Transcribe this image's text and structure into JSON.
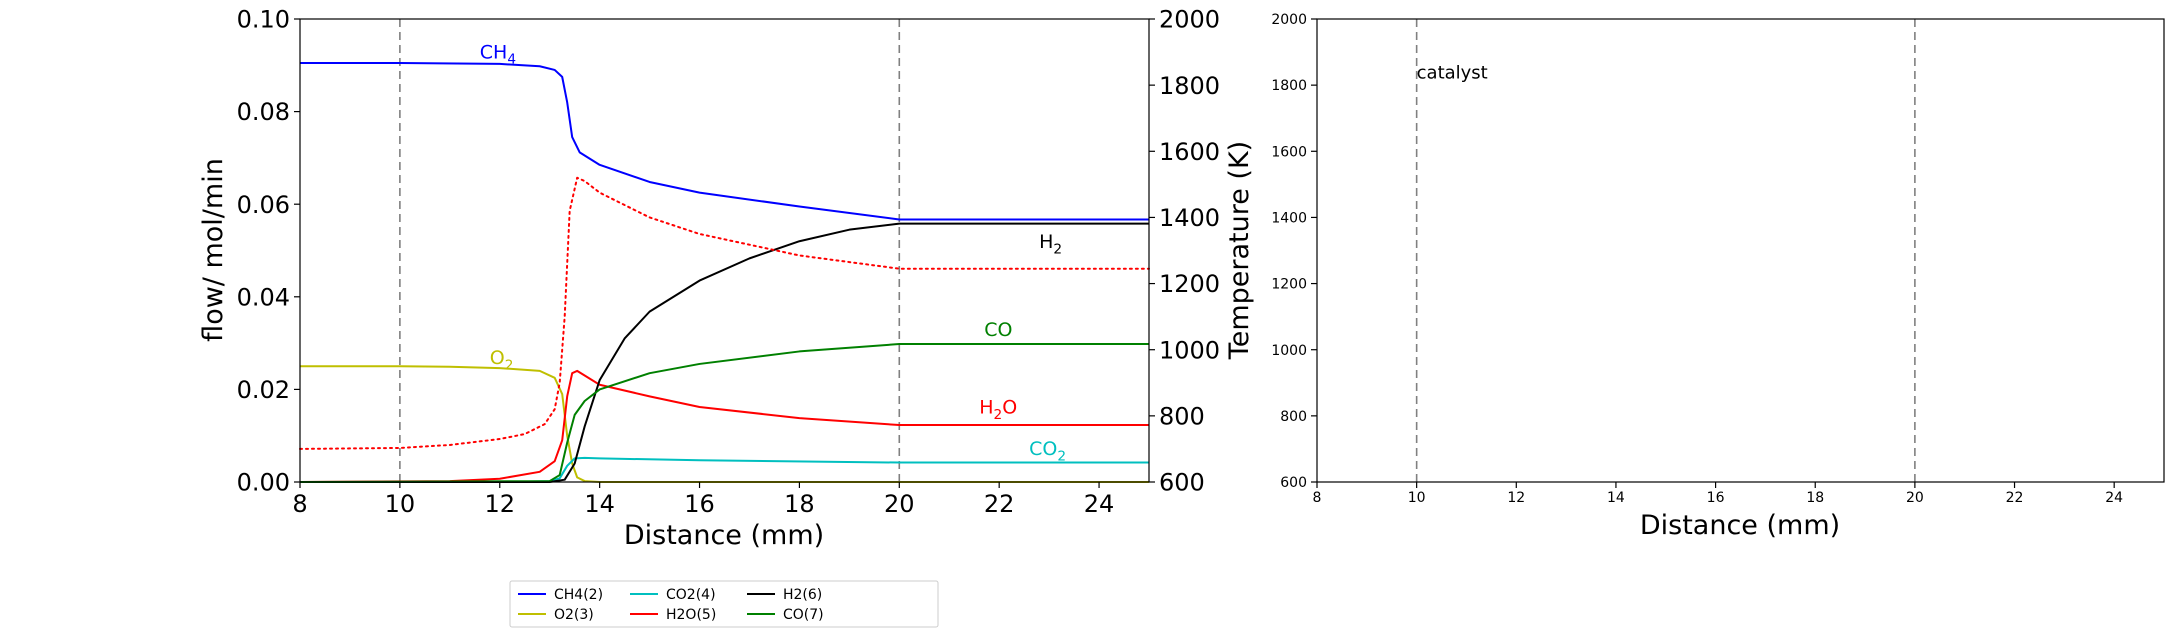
{
  "chart_data": [
    {
      "type": "line",
      "title": "",
      "xlabel": "Distance (mm)",
      "ylabel": "flow/ mol/min",
      "y2label": "Temperature (K)",
      "xlim": [
        8,
        25
      ],
      "ylim": [
        0,
        0.1
      ],
      "y2lim": [
        600,
        2000
      ],
      "xticks": [
        "8",
        "10",
        "12",
        "14",
        "16",
        "18",
        "20",
        "22",
        "24"
      ],
      "yticks": [
        "0.00",
        "0.02",
        "0.04",
        "0.06",
        "0.08",
        "0.10"
      ],
      "y2ticks": [
        "600",
        "800",
        "1000",
        "1200",
        "1400",
        "1600",
        "1800",
        "2000"
      ],
      "vlines": [
        10,
        20
      ],
      "grid": false,
      "legend_position": "bottom-center",
      "series": [
        {
          "name": "CH4(2)",
          "color": "#0000ff",
          "style": "solid",
          "x": [
            8,
            10,
            12,
            12.8,
            13.1,
            13.25,
            13.35,
            13.45,
            13.6,
            14,
            15,
            16,
            18,
            20,
            25
          ],
          "y": [
            0.0905,
            0.0905,
            0.0903,
            0.0898,
            0.089,
            0.0875,
            0.082,
            0.0745,
            0.0712,
            0.0685,
            0.0648,
            0.0625,
            0.0595,
            0.0567,
            0.0567
          ]
        },
        {
          "name": "O2(3)",
          "color": "#bfbf00",
          "style": "solid",
          "x": [
            8,
            10,
            11,
            12,
            12.8,
            13.1,
            13.25,
            13.35,
            13.45,
            13.55,
            13.7,
            14,
            25
          ],
          "y": [
            0.025,
            0.025,
            0.0249,
            0.0246,
            0.024,
            0.0225,
            0.019,
            0.01,
            0.004,
            0.001,
            0.0002,
            0,
            0
          ]
        },
        {
          "name": "CO2(4)",
          "color": "#00bfbf",
          "style": "solid",
          "x": [
            8,
            12,
            13,
            13.2,
            13.35,
            13.5,
            13.7,
            14,
            16,
            20,
            25
          ],
          "y": [
            0,
            0,
            0.0002,
            0.0008,
            0.0035,
            0.0051,
            0.0052,
            0.0051,
            0.0047,
            0.0042,
            0.0042
          ]
        },
        {
          "name": "H2O(5)",
          "color": "#ff0000",
          "style": "solid",
          "x": [
            8,
            11,
            12,
            12.8,
            13.1,
            13.25,
            13.35,
            13.45,
            13.55,
            13.7,
            14,
            15,
            16,
            18,
            20,
            25
          ],
          "y": [
            0,
            0.0002,
            0.0007,
            0.0022,
            0.0045,
            0.009,
            0.0185,
            0.0235,
            0.024,
            0.023,
            0.021,
            0.0185,
            0.0162,
            0.0138,
            0.0123,
            0.0123
          ]
        },
        {
          "name": "H2(6)",
          "color": "#000000",
          "style": "solid",
          "x": [
            8,
            13,
            13.3,
            13.5,
            13.7,
            14,
            14.5,
            15,
            16,
            17,
            18,
            19,
            20,
            25
          ],
          "y": [
            0,
            0,
            0.0005,
            0.004,
            0.012,
            0.022,
            0.031,
            0.0368,
            0.0435,
            0.0483,
            0.052,
            0.0545,
            0.0558,
            0.0558
          ]
        },
        {
          "name": "CO(7)",
          "color": "#008000",
          "style": "solid",
          "x": [
            8,
            13,
            13.2,
            13.35,
            13.5,
            13.7,
            14,
            15,
            16,
            18,
            20,
            25
          ],
          "y": [
            0,
            0.0002,
            0.0015,
            0.0085,
            0.0145,
            0.0175,
            0.02,
            0.0235,
            0.0255,
            0.0282,
            0.0298,
            0.0298
          ]
        },
        {
          "name": "",
          "color": "#ff0000",
          "style": "dotted",
          "axis": "y2",
          "x": [
            8,
            10,
            11,
            12,
            12.5,
            12.9,
            13.1,
            13.2,
            13.3,
            13.4,
            13.55,
            13.7,
            14,
            15,
            16,
            18,
            20,
            25
          ],
          "y": [
            700,
            703,
            712,
            730,
            745,
            775,
            820,
            900,
            1100,
            1420,
            1520,
            1510,
            1475,
            1400,
            1350,
            1285,
            1245,
            1245
          ]
        }
      ],
      "annotations": [
        {
          "text": "CH",
          "sub": "4",
          "x": 11.6,
          "y": 0.0915,
          "color": "#0000ff"
        },
        {
          "text": "O",
          "sub": "2",
          "x": 11.8,
          "y": 0.0255,
          "color": "#bfbf00"
        },
        {
          "text": "H",
          "sub": "2",
          "x": 22.8,
          "y": 0.0505,
          "color": "#000000"
        },
        {
          "text": "CO",
          "sub": "",
          "x": 21.7,
          "y": 0.0315,
          "color": "#008000"
        },
        {
          "text": "H",
          "sub": "2",
          "after": "O",
          "x": 21.6,
          "y": 0.0148,
          "color": "#ff0000"
        },
        {
          "text": "CO",
          "sub": "2",
          "x": 22.6,
          "y": 0.0058,
          "color": "#00bfbf"
        }
      ]
    },
    {
      "type": "line",
      "title": "",
      "xlabel": "Distance (mm)",
      "ylabel": "",
      "xlim": [
        8,
        25
      ],
      "ylim": [
        600,
        2000
      ],
      "xticks": [
        "8",
        "10",
        "12",
        "14",
        "16",
        "18",
        "20",
        "22",
        "24"
      ],
      "yticks": [
        "600",
        "800",
        "1000",
        "1200",
        "1400",
        "1600",
        "1800",
        "2000"
      ],
      "vlines": [
        10,
        20
      ],
      "grid": false,
      "series": [],
      "annotations": [
        {
          "text": "catalyst",
          "x": 10,
          "y": 1820,
          "color": "#000000"
        }
      ]
    }
  ]
}
